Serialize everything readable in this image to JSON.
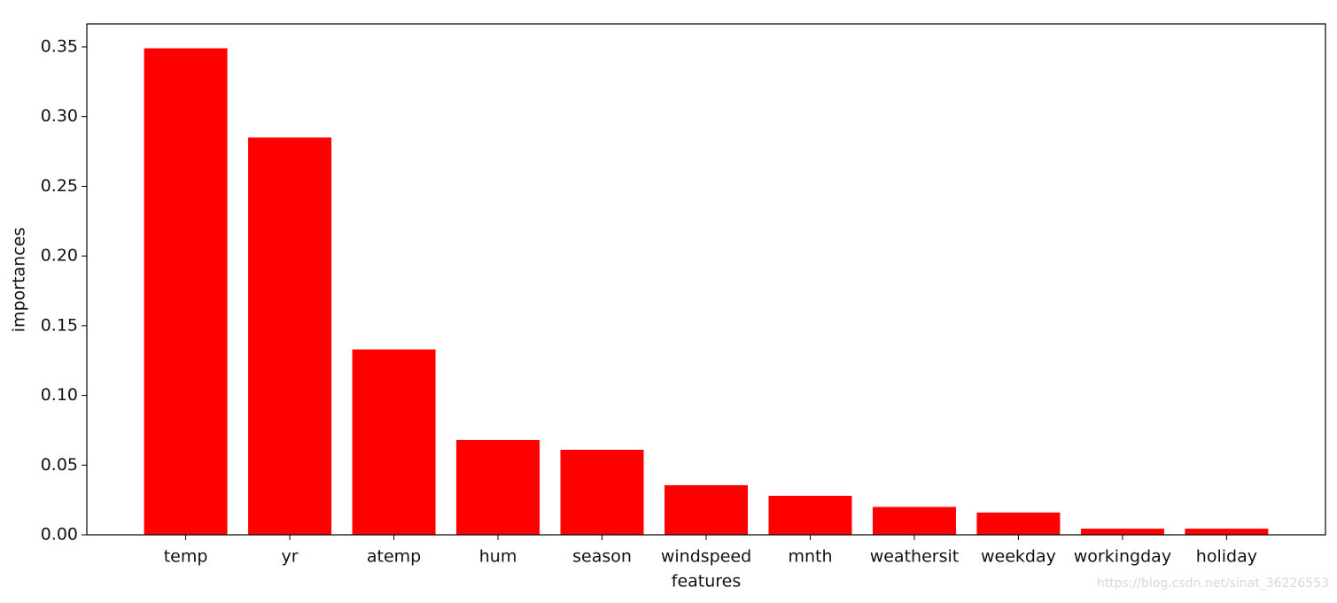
{
  "chart_data": {
    "type": "bar",
    "x_label": "features",
    "y_label": "importances",
    "categories": [
      "temp",
      "yr",
      "atemp",
      "hum",
      "season",
      "windspeed",
      "mnth",
      "weathersit",
      "weekday",
      "workingday",
      "holiday"
    ],
    "values": [
      0.349,
      0.285,
      0.133,
      0.068,
      0.061,
      0.0356,
      0.028,
      0.02,
      0.016,
      0.0044,
      0.0044
    ],
    "color": "#ff0000",
    "ylim": [
      0,
      0.3665
    ],
    "yticks": [
      {
        "value": 0,
        "label": "0.00"
      },
      {
        "value": 0.05,
        "label": "0.05"
      },
      {
        "value": 0.1,
        "label": "0.10"
      },
      {
        "value": 0.15,
        "label": "0.15"
      },
      {
        "value": 0.2,
        "label": "0.20"
      },
      {
        "value": 0.25,
        "label": "0.25"
      },
      {
        "value": 0.3,
        "label": "0.30"
      },
      {
        "value": 0.35,
        "label": "0.35"
      }
    ],
    "grid": false,
    "watermark": "https://blog.csdn.net/sinat_36226553"
  }
}
